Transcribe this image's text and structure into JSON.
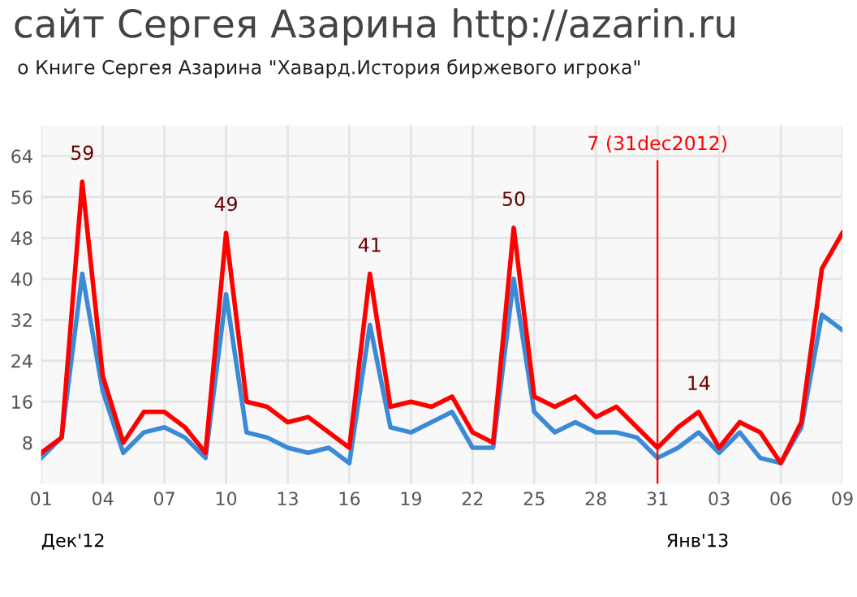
{
  "chart_data": {
    "type": "line",
    "title": "сайт Сергея Азарина http://azarin.ru",
    "subtitle": "о Книге Сергея Азарина \"Хавард.История биржевого игрока\"",
    "x": [
      "2012-12-01",
      "2012-12-02",
      "2012-12-03",
      "2012-12-04",
      "2012-12-05",
      "2012-12-06",
      "2012-12-07",
      "2012-12-08",
      "2012-12-09",
      "2012-12-10",
      "2012-12-11",
      "2012-12-12",
      "2012-12-13",
      "2012-12-14",
      "2012-12-15",
      "2012-12-16",
      "2012-12-17",
      "2012-12-18",
      "2012-12-19",
      "2012-12-20",
      "2012-12-21",
      "2012-12-22",
      "2012-12-23",
      "2012-12-24",
      "2012-12-25",
      "2012-12-26",
      "2012-12-27",
      "2012-12-28",
      "2012-12-29",
      "2012-12-30",
      "2012-12-31",
      "2013-01-01",
      "2013-01-02",
      "2013-01-03",
      "2013-01-04",
      "2013-01-05",
      "2013-01-06",
      "2013-01-07",
      "2013-01-08",
      "2013-01-09"
    ],
    "series": [
      {
        "color": "#3a8ad6",
        "values": [
          5,
          9,
          41,
          18,
          6,
          10,
          11,
          9,
          5,
          37,
          10,
          9,
          7,
          6,
          7,
          4,
          31,
          11,
          10,
          12,
          14,
          7,
          7,
          40,
          14,
          10,
          12,
          10,
          10,
          9,
          5,
          7,
          10,
          6,
          10,
          5,
          4,
          11,
          33,
          30
        ]
      },
      {
        "color": "#ff0000",
        "values": [
          6,
          9,
          59,
          21,
          8,
          14,
          14,
          11,
          6,
          49,
          16,
          15,
          12,
          13,
          10,
          7,
          41,
          15,
          16,
          15,
          17,
          10,
          8,
          50,
          17,
          15,
          17,
          13,
          15,
          11,
          7,
          11,
          14,
          7,
          12,
          10,
          4,
          12,
          42,
          49
        ]
      }
    ],
    "xlim": [
      "2012-12-01",
      "2013-01-09"
    ],
    "xticks": [
      {
        "value": "2012-12-01",
        "label": "01"
      },
      {
        "value": "2012-12-04",
        "label": "04"
      },
      {
        "value": "2012-12-07",
        "label": "07"
      },
      {
        "value": "2012-12-10",
        "label": "10"
      },
      {
        "value": "2012-12-13",
        "label": "13"
      },
      {
        "value": "2012-12-16",
        "label": "16"
      },
      {
        "value": "2012-12-19",
        "label": "19"
      },
      {
        "value": "2012-12-22",
        "label": "22"
      },
      {
        "value": "2012-12-25",
        "label": "25"
      },
      {
        "value": "2012-12-28",
        "label": "28"
      },
      {
        "value": "2012-12-31",
        "label": "31"
      },
      {
        "value": "2013-01-03",
        "label": "03"
      },
      {
        "value": "2013-01-06",
        "label": "06"
      },
      {
        "value": "2013-01-09",
        "label": "09"
      }
    ],
    "ylim": [
      0,
      70
    ],
    "yticks": [
      8,
      16,
      24,
      32,
      40,
      48,
      56,
      64
    ],
    "grid": true,
    "marker": "none",
    "line_style": "solid",
    "ref_lines": [
      {
        "axis": "x",
        "value": "2012-12-31",
        "label": "7 (31dec2012)",
        "color": "#ff0000"
      }
    ],
    "annotations": [
      {
        "text": "59",
        "x": "2012-12-03",
        "y": 59
      },
      {
        "text": "49",
        "x": "2012-12-10",
        "y": 49
      },
      {
        "text": "41",
        "x": "2012-12-17",
        "y": 41
      },
      {
        "text": "50",
        "x": "2012-12-24",
        "y": 50
      },
      {
        "text": "14",
        "x": "2013-01-02",
        "y": 14
      },
      "Дек'12",
      "Янв'13"
    ]
  }
}
